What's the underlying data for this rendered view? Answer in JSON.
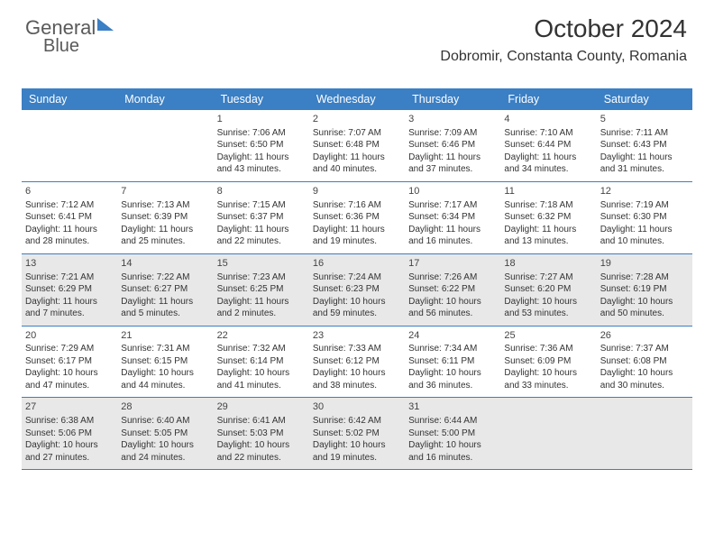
{
  "header": {
    "month": "October 2024",
    "location": "Dobromir, Constanta County, Romania"
  },
  "dayNames": [
    "Sunday",
    "Monday",
    "Tuesday",
    "Wednesday",
    "Thursday",
    "Friday",
    "Saturday"
  ],
  "colors": {
    "accent": "#3b7fc4",
    "shaded": "#e8e8e8",
    "text": "#333"
  },
  "weeks": [
    [
      {
        "blank": true
      },
      {
        "blank": true
      },
      {
        "n": "1",
        "sr": "7:06 AM",
        "ss": "6:50 PM",
        "d": "11 hours and 43 minutes."
      },
      {
        "n": "2",
        "sr": "7:07 AM",
        "ss": "6:48 PM",
        "d": "11 hours and 40 minutes."
      },
      {
        "n": "3",
        "sr": "7:09 AM",
        "ss": "6:46 PM",
        "d": "11 hours and 37 minutes."
      },
      {
        "n": "4",
        "sr": "7:10 AM",
        "ss": "6:44 PM",
        "d": "11 hours and 34 minutes."
      },
      {
        "n": "5",
        "sr": "7:11 AM",
        "ss": "6:43 PM",
        "d": "11 hours and 31 minutes."
      }
    ],
    [
      {
        "n": "6",
        "sr": "7:12 AM",
        "ss": "6:41 PM",
        "d": "11 hours and 28 minutes."
      },
      {
        "n": "7",
        "sr": "7:13 AM",
        "ss": "6:39 PM",
        "d": "11 hours and 25 minutes."
      },
      {
        "n": "8",
        "sr": "7:15 AM",
        "ss": "6:37 PM",
        "d": "11 hours and 22 minutes."
      },
      {
        "n": "9",
        "sr": "7:16 AM",
        "ss": "6:36 PM",
        "d": "11 hours and 19 minutes."
      },
      {
        "n": "10",
        "sr": "7:17 AM",
        "ss": "6:34 PM",
        "d": "11 hours and 16 minutes."
      },
      {
        "n": "11",
        "sr": "7:18 AM",
        "ss": "6:32 PM",
        "d": "11 hours and 13 minutes."
      },
      {
        "n": "12",
        "sr": "7:19 AM",
        "ss": "6:30 PM",
        "d": "11 hours and 10 minutes."
      }
    ],
    [
      {
        "n": "13",
        "sr": "7:21 AM",
        "ss": "6:29 PM",
        "d": "11 hours and 7 minutes.",
        "shaded": true
      },
      {
        "n": "14",
        "sr": "7:22 AM",
        "ss": "6:27 PM",
        "d": "11 hours and 5 minutes.",
        "shaded": true
      },
      {
        "n": "15",
        "sr": "7:23 AM",
        "ss": "6:25 PM",
        "d": "11 hours and 2 minutes.",
        "shaded": true
      },
      {
        "n": "16",
        "sr": "7:24 AM",
        "ss": "6:23 PM",
        "d": "10 hours and 59 minutes.",
        "shaded": true
      },
      {
        "n": "17",
        "sr": "7:26 AM",
        "ss": "6:22 PM",
        "d": "10 hours and 56 minutes.",
        "shaded": true
      },
      {
        "n": "18",
        "sr": "7:27 AM",
        "ss": "6:20 PM",
        "d": "10 hours and 53 minutes.",
        "shaded": true
      },
      {
        "n": "19",
        "sr": "7:28 AM",
        "ss": "6:19 PM",
        "d": "10 hours and 50 minutes.",
        "shaded": true
      }
    ],
    [
      {
        "n": "20",
        "sr": "7:29 AM",
        "ss": "6:17 PM",
        "d": "10 hours and 47 minutes."
      },
      {
        "n": "21",
        "sr": "7:31 AM",
        "ss": "6:15 PM",
        "d": "10 hours and 44 minutes."
      },
      {
        "n": "22",
        "sr": "7:32 AM",
        "ss": "6:14 PM",
        "d": "10 hours and 41 minutes."
      },
      {
        "n": "23",
        "sr": "7:33 AM",
        "ss": "6:12 PM",
        "d": "10 hours and 38 minutes."
      },
      {
        "n": "24",
        "sr": "7:34 AM",
        "ss": "6:11 PM",
        "d": "10 hours and 36 minutes."
      },
      {
        "n": "25",
        "sr": "7:36 AM",
        "ss": "6:09 PM",
        "d": "10 hours and 33 minutes."
      },
      {
        "n": "26",
        "sr": "7:37 AM",
        "ss": "6:08 PM",
        "d": "10 hours and 30 minutes."
      }
    ],
    [
      {
        "n": "27",
        "sr": "6:38 AM",
        "ss": "5:06 PM",
        "d": "10 hours and 27 minutes.",
        "shaded": true
      },
      {
        "n": "28",
        "sr": "6:40 AM",
        "ss": "5:05 PM",
        "d": "10 hours and 24 minutes.",
        "shaded": true
      },
      {
        "n": "29",
        "sr": "6:41 AM",
        "ss": "5:03 PM",
        "d": "10 hours and 22 minutes.",
        "shaded": true
      },
      {
        "n": "30",
        "sr": "6:42 AM",
        "ss": "5:02 PM",
        "d": "10 hours and 19 minutes.",
        "shaded": true
      },
      {
        "n": "31",
        "sr": "6:44 AM",
        "ss": "5:00 PM",
        "d": "10 hours and 16 minutes.",
        "shaded": true
      },
      {
        "blank": true,
        "shaded": true
      },
      {
        "blank": true,
        "shaded": true
      }
    ]
  ]
}
